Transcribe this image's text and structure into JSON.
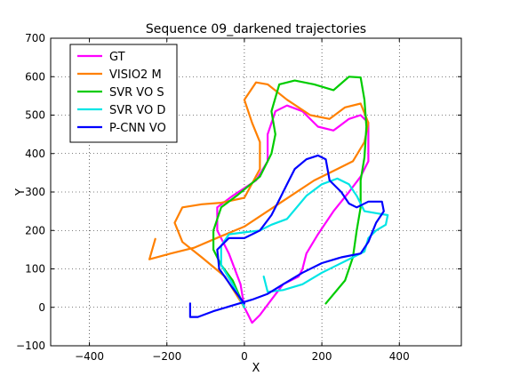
{
  "chart_data": {
    "type": "line",
    "title": "Sequence 09_darkened trajectories",
    "xlabel": "X",
    "ylabel": "Y",
    "xlim": [
      -500,
      560
    ],
    "ylim": [
      -100,
      700
    ],
    "xticks": [
      -400,
      -200,
      0,
      200,
      400
    ],
    "yticks": [
      -100,
      0,
      100,
      200,
      300,
      400,
      500,
      600,
      700
    ],
    "xtick_labels": [
      "−400",
      "−200",
      "0",
      "200",
      "400"
    ],
    "ytick_labels": [
      "−100",
      "0",
      "100",
      "200",
      "300",
      "400",
      "500",
      "600",
      "700"
    ],
    "grid": true,
    "legend_position": "top-left",
    "series": [
      {
        "name": "GT",
        "color": "#ff00ff",
        "points": [
          [
            0,
            0
          ],
          [
            -10,
            60
          ],
          [
            -40,
            140
          ],
          [
            -70,
            200
          ],
          [
            -70,
            260
          ],
          [
            -30,
            290
          ],
          [
            30,
            330
          ],
          [
            60,
            380
          ],
          [
            60,
            450
          ],
          [
            80,
            510
          ],
          [
            110,
            525
          ],
          [
            150,
            510
          ],
          [
            190,
            470
          ],
          [
            230,
            460
          ],
          [
            270,
            490
          ],
          [
            300,
            500
          ],
          [
            320,
            480
          ],
          [
            320,
            380
          ],
          [
            300,
            340
          ],
          [
            270,
            300
          ],
          [
            230,
            250
          ],
          [
            190,
            190
          ],
          [
            160,
            140
          ],
          [
            150,
            100
          ],
          [
            140,
            80
          ],
          [
            100,
            60
          ],
          [
            70,
            20
          ],
          [
            40,
            -20
          ],
          [
            20,
            -40
          ],
          [
            10,
            -20
          ],
          [
            0,
            0
          ]
        ]
      },
      {
        "name": "VISIO2 M",
        "color": "#ff8000",
        "points": [
          [
            0,
            0
          ],
          [
            -50,
            80
          ],
          [
            -110,
            130
          ],
          [
            -160,
            170
          ],
          [
            -180,
            220
          ],
          [
            -160,
            260
          ],
          [
            -110,
            268
          ],
          [
            -60,
            272
          ],
          [
            0,
            285
          ],
          [
            40,
            360
          ],
          [
            40,
            430
          ],
          [
            20,
            480
          ],
          [
            0,
            540
          ],
          [
            30,
            585
          ],
          [
            60,
            580
          ],
          [
            110,
            540
          ],
          [
            170,
            500
          ],
          [
            220,
            490
          ],
          [
            260,
            520
          ],
          [
            300,
            530
          ],
          [
            320,
            480
          ],
          [
            310,
            430
          ],
          [
            280,
            380
          ],
          [
            240,
            360
          ],
          [
            180,
            330
          ],
          [
            120,
            290
          ],
          [
            60,
            250
          ],
          [
            0,
            210
          ],
          [
            -60,
            185
          ],
          [
            -130,
            155
          ],
          [
            -190,
            140
          ],
          [
            -245,
            125
          ],
          [
            -230,
            178
          ]
        ]
      },
      {
        "name": "SVR VO S",
        "color": "#00cc00",
        "points": [
          [
            0,
            0
          ],
          [
            -30,
            70
          ],
          [
            -60,
            110
          ],
          [
            -80,
            150
          ],
          [
            -80,
            200
          ],
          [
            -60,
            260
          ],
          [
            -20,
            290
          ],
          [
            40,
            340
          ],
          [
            70,
            400
          ],
          [
            80,
            450
          ],
          [
            70,
            510
          ],
          [
            90,
            580
          ],
          [
            130,
            590
          ],
          [
            180,
            580
          ],
          [
            230,
            565
          ],
          [
            270,
            600
          ],
          [
            300,
            598
          ],
          [
            310,
            540
          ],
          [
            315,
            470
          ],
          [
            310,
            390
          ],
          [
            300,
            330
          ],
          [
            300,
            260
          ],
          [
            290,
            200
          ],
          [
            280,
            130
          ],
          [
            260,
            70
          ],
          [
            210,
            10
          ]
        ]
      },
      {
        "name": "SVR VO D",
        "color": "#00e5e5",
        "points": [
          [
            50,
            80
          ],
          [
            60,
            40
          ],
          [
            100,
            45
          ],
          [
            150,
            60
          ],
          [
            200,
            90
          ],
          [
            240,
            110
          ],
          [
            280,
            130
          ],
          [
            310,
            145
          ],
          [
            320,
            180
          ],
          [
            340,
            200
          ],
          [
            365,
            215
          ],
          [
            370,
            240
          ],
          [
            340,
            245
          ],
          [
            310,
            250
          ],
          [
            290,
            290
          ],
          [
            270,
            320
          ],
          [
            240,
            335
          ],
          [
            200,
            320
          ],
          [
            160,
            290
          ],
          [
            110,
            230
          ],
          [
            70,
            215
          ],
          [
            40,
            200
          ],
          [
            0,
            195
          ],
          [
            -40,
            190
          ],
          [
            -60,
            160
          ],
          [
            -60,
            110
          ],
          [
            -30,
            60
          ],
          [
            0,
            0
          ]
        ]
      },
      {
        "name": "P-CNN VO",
        "color": "#0000ff",
        "points": [
          [
            -140,
            10
          ],
          [
            -140,
            -25
          ],
          [
            -120,
            -25
          ],
          [
            -80,
            -10
          ],
          [
            -30,
            5
          ],
          [
            20,
            20
          ],
          [
            60,
            35
          ],
          [
            100,
            60
          ],
          [
            150,
            90
          ],
          [
            200,
            115
          ],
          [
            250,
            130
          ],
          [
            300,
            140
          ],
          [
            320,
            170
          ],
          [
            340,
            220
          ],
          [
            360,
            250
          ],
          [
            355,
            275
          ],
          [
            320,
            275
          ],
          [
            290,
            260
          ],
          [
            270,
            270
          ],
          [
            250,
            300
          ],
          [
            220,
            330
          ],
          [
            210,
            385
          ],
          [
            190,
            395
          ],
          [
            160,
            385
          ],
          [
            130,
            360
          ],
          [
            110,
            320
          ],
          [
            90,
            280
          ],
          [
            70,
            240
          ],
          [
            40,
            200
          ],
          [
            0,
            180
          ],
          [
            -40,
            180
          ],
          [
            -70,
            150
          ],
          [
            -65,
            100
          ],
          [
            -30,
            50
          ],
          [
            0,
            10
          ]
        ]
      }
    ]
  }
}
